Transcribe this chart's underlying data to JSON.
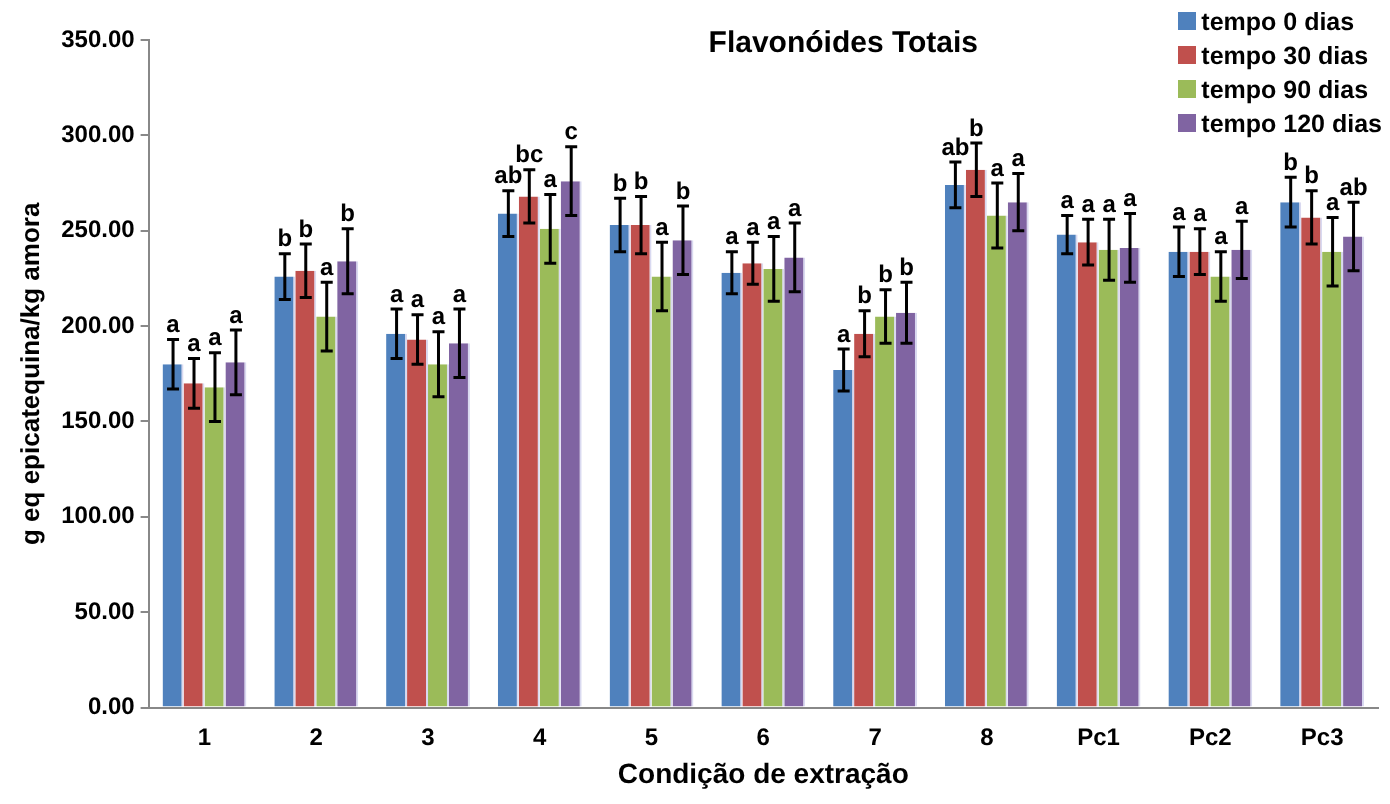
{
  "chart_data": {
    "type": "bar",
    "title": "Flavonóides Totais",
    "xlabel": "Condição de extração",
    "ylabel": "g eq epicatequina/kg amora",
    "categories": [
      "1",
      "2",
      "3",
      "4",
      "5",
      "6",
      "7",
      "8",
      "Pc1",
      "Pc2",
      "Pc3"
    ],
    "series": [
      {
        "name": "tempo 0 dias",
        "color": "#4f81bd",
        "values": [
          180,
          226,
          196,
          259,
          253,
          228,
          177,
          274,
          248,
          239,
          265
        ],
        "errors": [
          13,
          12,
          13,
          12,
          14,
          11,
          11,
          12,
          10,
          13,
          13
        ],
        "value_labels": [
          "a",
          "b",
          "a",
          "ab",
          "b",
          "a",
          "a",
          "ab",
          "a",
          "a",
          "b"
        ]
      },
      {
        "name": "tempo 30 dias",
        "color": "#c0504d",
        "values": [
          170,
          229,
          193,
          268,
          253,
          233,
          196,
          282,
          244,
          239,
          257
        ],
        "errors": [
          13,
          14,
          13,
          14,
          15,
          11,
          12,
          14,
          12,
          12,
          14
        ],
        "value_labels": [
          "a",
          "b",
          "a",
          "bc",
          "b",
          "a",
          "b",
          "b",
          "a",
          "a",
          "b"
        ]
      },
      {
        "name": "tempo 90 dias",
        "color": "#9bbb59",
        "values": [
          168,
          205,
          180,
          251,
          226,
          230,
          205,
          258,
          240,
          226,
          239
        ],
        "errors": [
          18,
          18,
          17,
          18,
          18,
          17,
          14,
          17,
          16,
          13,
          18
        ],
        "value_labels": [
          "a",
          "a",
          "a",
          "a",
          "a",
          "a",
          "b",
          "a",
          "a",
          "a",
          "a"
        ]
      },
      {
        "name": "tempo 120 dias",
        "color": "#8064a2",
        "values": [
          181,
          234,
          191,
          276,
          245,
          236,
          207,
          265,
          241,
          240,
          247
        ],
        "errors": [
          17,
          17,
          18,
          18,
          18,
          18,
          16,
          15,
          18,
          15,
          18
        ],
        "value_labels": [
          "a",
          "b",
          "a",
          "c",
          "b",
          "a",
          "b",
          "a",
          "a",
          "a",
          "ab"
        ]
      }
    ],
    "ylim": [
      0,
      350
    ],
    "yticks": [
      {
        "value": 0,
        "label": "0.00"
      },
      {
        "value": 50,
        "label": "50.00"
      },
      {
        "value": 100,
        "label": "100.00"
      },
      {
        "value": 150,
        "label": "150.00"
      },
      {
        "value": 200,
        "label": "200.00"
      },
      {
        "value": 250,
        "label": "250.00"
      },
      {
        "value": 300,
        "label": "300.00"
      },
      {
        "value": 350,
        "label": "350.00"
      }
    ],
    "grid": false,
    "legend": "top right"
  }
}
